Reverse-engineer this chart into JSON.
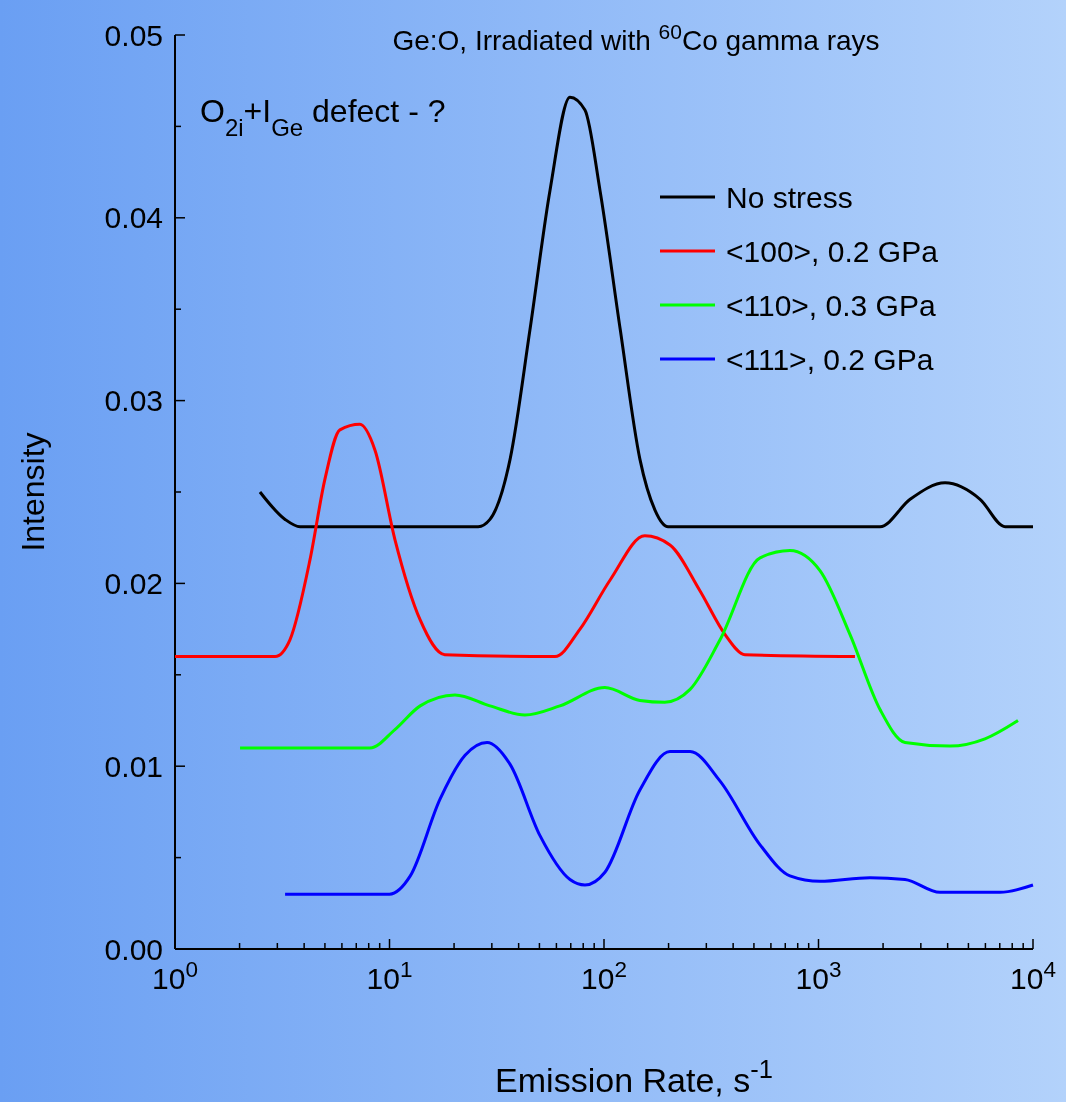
{
  "chart_data": {
    "type": "line",
    "title": "Ge:O, Irradiated with $^{60}$Co gamma rays",
    "xlabel": "Emission Rate, s$^{-1}$",
    "ylabel": "Intensity",
    "annotations": [
      "O$_{2i}$+I$_{Ge}$ defect - ?"
    ],
    "log": "x",
    "xlim": [
      1,
      10000
    ],
    "ylim": [
      0,
      0.05
    ],
    "xticks": [
      {
        "value": 1,
        "label": "10$^{0}$"
      },
      {
        "value": 2,
        "label": null
      },
      {
        "value": 3,
        "label": null
      },
      {
        "value": 4,
        "label": null
      },
      {
        "value": 5,
        "label": null
      },
      {
        "value": 6,
        "label": null
      },
      {
        "value": 7,
        "label": null
      },
      {
        "value": 8,
        "label": null
      },
      {
        "value": 9,
        "label": null
      },
      {
        "value": 10,
        "label": "10$^{1}$"
      },
      {
        "value": 20,
        "label": null
      },
      {
        "value": 30,
        "label": null
      },
      {
        "value": 40,
        "label": null
      },
      {
        "value": 50,
        "label": null
      },
      {
        "value": 60,
        "label": null
      },
      {
        "value": 70,
        "label": null
      },
      {
        "value": 80,
        "label": null
      },
      {
        "value": 90,
        "label": null
      },
      {
        "value": 100,
        "label": "10$^{2}$"
      },
      {
        "value": 200,
        "label": null
      },
      {
        "value": 300,
        "label": null
      },
      {
        "value": 400,
        "label": null
      },
      {
        "value": 500,
        "label": null
      },
      {
        "value": 600,
        "label": null
      },
      {
        "value": 700,
        "label": null
      },
      {
        "value": 800,
        "label": null
      },
      {
        "value": 900,
        "label": null
      },
      {
        "value": 1000,
        "label": "10$^{3}$"
      },
      {
        "value": 2000,
        "label": null
      },
      {
        "value": 3000,
        "label": null
      },
      {
        "value": 4000,
        "label": null
      },
      {
        "value": 5000,
        "label": null
      },
      {
        "value": 6000,
        "label": null
      },
      {
        "value": 7000,
        "label": null
      },
      {
        "value": 8000,
        "label": null
      },
      {
        "value": 9000,
        "label": null
      },
      {
        "value": 10000,
        "label": "10$^{4}$"
      }
    ],
    "yticks": [
      {
        "value": 0,
        "label": "0.00"
      },
      {
        "value": 0.005,
        "label": null
      },
      {
        "value": 0.01,
        "label": "0.01"
      },
      {
        "value": 0.015,
        "label": null
      },
      {
        "value": 0.02,
        "label": "0.02"
      },
      {
        "value": 0.025,
        "label": null
      },
      {
        "value": 0.03,
        "label": "0.03"
      },
      {
        "value": 0.035,
        "label": null
      },
      {
        "value": 0.04,
        "label": "0.04"
      },
      {
        "value": 0.045,
        "label": null
      },
      {
        "value": 0.05,
        "label": "0.05"
      }
    ],
    "grid": false,
    "legend": "top right",
    "marker": "none",
    "line_style": "solid",
    "series": [
      {
        "name": "No stress",
        "color": "#000000",
        "x": [
          2.49,
          3.26,
          3.83,
          25.9,
          29.4,
          36.5,
          45.2,
          56,
          69.4,
          81.5,
          95.8,
          119,
          147,
          173,
          199,
          1936,
          2674,
          3891,
          5666,
          7413,
          10000
        ],
        "values": [
          0.025,
          0.0235,
          0.0231,
          0.0231,
          0.0235,
          0.0268,
          0.0339,
          0.0415,
          0.0466,
          0.0459,
          0.0415,
          0.0339,
          0.0268,
          0.024,
          0.0231,
          0.0231,
          0.0246,
          0.0255,
          0.0246,
          0.0231,
          0.0231
        ]
      },
      {
        "name": "<100>, 0.2 GPa",
        "color": "#ff0000",
        "x": [
          1,
          2.93,
          3.43,
          4.26,
          5,
          5.87,
          7.28,
          8.55,
          10.6,
          13.9,
          18.1,
          59.1,
          77.3,
          107,
          155,
          203,
          280,
          367,
          454,
          1479
        ],
        "values": [
          0.016,
          0.016,
          0.0169,
          0.0213,
          0.0257,
          0.0284,
          0.0287,
          0.0273,
          0.0224,
          0.018,
          0.0161,
          0.016,
          0.0175,
          0.0202,
          0.0226,
          0.0221,
          0.0196,
          0.0172,
          0.0161,
          0.016
        ]
      },
      {
        "name": "<110>, 0.3 GPa",
        "color": "#00ff00",
        "x": [
          2.01,
          8.11,
          10.6,
          13.9,
          20.2,
          29.4,
          42.8,
          62.3,
          101,
          147,
          192,
          252,
          347,
          534,
          736,
          1016,
          1403,
          1936,
          2531,
          4101,
          5970,
          8511
        ],
        "values": [
          0.011,
          0.011,
          0.012,
          0.0133,
          0.0139,
          0.0133,
          0.0128,
          0.0133,
          0.0143,
          0.0136,
          0.0135,
          0.0142,
          0.0169,
          0.0214,
          0.0218,
          0.0207,
          0.0172,
          0.0131,
          0.0113,
          0.0111,
          0.0115,
          0.0125
        ]
      },
      {
        "name": "<111>, 0.2 GPa",
        "color": "#0000ff",
        "x": [
          3.26,
          10,
          12.5,
          17.2,
          22.5,
          28.5,
          36.5,
          50.3,
          69.4,
          81.5,
          101,
          147,
          203,
          252,
          347,
          534,
          736,
          1016,
          1738,
          2531,
          3683,
          7017,
          10000
        ],
        "values": [
          0.003,
          0.003,
          0.004,
          0.0082,
          0.0106,
          0.0113,
          0.0101,
          0.0062,
          0.0038,
          0.0035,
          0.0042,
          0.0087,
          0.0108,
          0.0108,
          0.0092,
          0.0057,
          0.004,
          0.0037,
          0.0039,
          0.0038,
          0.0031,
          0.0031,
          0.0035
        ]
      }
    ]
  }
}
